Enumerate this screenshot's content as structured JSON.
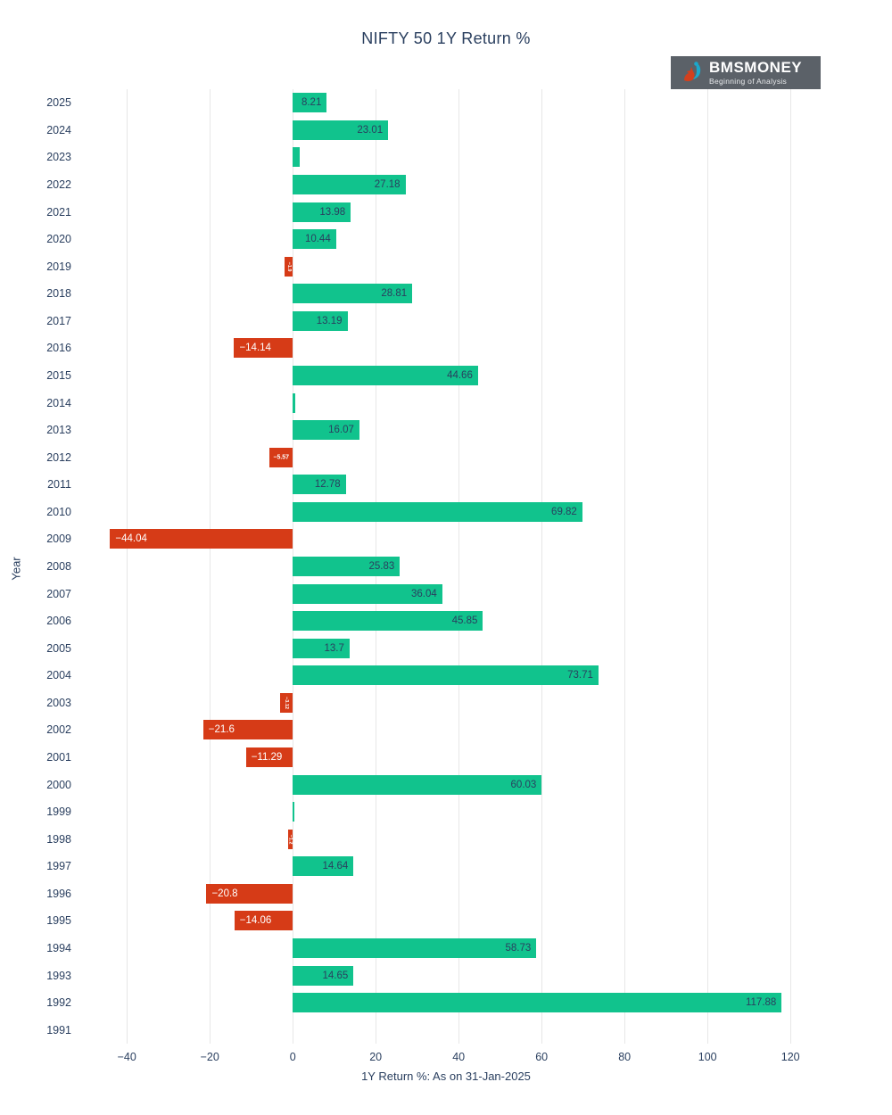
{
  "title": "NIFTY 50 1Y Return %",
  "logo": {
    "brand": "BMSMONEY",
    "tagline": "Beginning of Analysis",
    "background": "#5b6168",
    "teal": "#1ba8cc",
    "red": "#d2401e"
  },
  "chart_data": {
    "type": "bar",
    "orientation": "horizontal",
    "title": "NIFTY 50 1Y Return %",
    "xlabel": "1Y Return %: As on 31-Jan-2025",
    "ylabel": "Year",
    "xlim": [
      -52.3,
      130.5
    ],
    "xticks": [
      -40,
      -20,
      0,
      20,
      40,
      60,
      80,
      100,
      120
    ],
    "grid": true,
    "legend": false,
    "colors": {
      "positive": "#11c38d",
      "negative": "#d63b17",
      "label_on_positive": "#2a3f5f",
      "label_on_negative": "#ffffff"
    },
    "bars": [
      {
        "year": "2025",
        "value": 8.21,
        "label": "8.21",
        "label_mode": "h"
      },
      {
        "year": "2024",
        "value": 23.01,
        "label": "23.01",
        "label_mode": "h"
      },
      {
        "year": "2023",
        "value": 1.7,
        "label": "",
        "label_mode": "none"
      },
      {
        "year": "2022",
        "value": 27.18,
        "label": "27.18",
        "label_mode": "h"
      },
      {
        "year": "2021",
        "value": 13.98,
        "label": "13.98",
        "label_mode": "h"
      },
      {
        "year": "2020",
        "value": 10.44,
        "label": "10.44",
        "label_mode": "h"
      },
      {
        "year": "2019",
        "value": -1.9,
        "label": "−1.9",
        "label_mode": "v"
      },
      {
        "year": "2018",
        "value": 28.81,
        "label": "28.81",
        "label_mode": "h"
      },
      {
        "year": "2017",
        "value": 13.19,
        "label": "13.19",
        "label_mode": "h"
      },
      {
        "year": "2016",
        "value": -14.14,
        "label": "−14.14",
        "label_mode": "h"
      },
      {
        "year": "2015",
        "value": 44.66,
        "label": "44.66",
        "label_mode": "h"
      },
      {
        "year": "2014",
        "value": 0.5,
        "label": "",
        "label_mode": "none"
      },
      {
        "year": "2013",
        "value": 16.07,
        "label": "16.07",
        "label_mode": "h"
      },
      {
        "year": "2012",
        "value": -5.57,
        "label": "−5.57",
        "label_mode": "h-small"
      },
      {
        "year": "2011",
        "value": 12.78,
        "label": "12.78",
        "label_mode": "h"
      },
      {
        "year": "2010",
        "value": 69.82,
        "label": "69.82",
        "label_mode": "h"
      },
      {
        "year": "2009",
        "value": -44.04,
        "label": "−44.04",
        "label_mode": "h"
      },
      {
        "year": "2008",
        "value": 25.83,
        "label": "25.83",
        "label_mode": "h"
      },
      {
        "year": "2007",
        "value": 36.04,
        "label": "36.04",
        "label_mode": "h"
      },
      {
        "year": "2006",
        "value": 45.85,
        "label": "45.85",
        "label_mode": "h"
      },
      {
        "year": "2005",
        "value": 13.7,
        "label": "13.7",
        "label_mode": "h"
      },
      {
        "year": "2004",
        "value": 73.71,
        "label": "73.71",
        "label_mode": "h"
      },
      {
        "year": "2003",
        "value": -3.12,
        "label": "−3.12",
        "label_mode": "v"
      },
      {
        "year": "2002",
        "value": -21.6,
        "label": "−21.6",
        "label_mode": "h"
      },
      {
        "year": "2001",
        "value": -11.29,
        "label": "−11.29",
        "label_mode": "h"
      },
      {
        "year": "2000",
        "value": 60.03,
        "label": "60.03",
        "label_mode": "h"
      },
      {
        "year": "1999",
        "value": 0.3,
        "label": "",
        "label_mode": "none"
      },
      {
        "year": "1998",
        "value": -1.2,
        "label": "−1.2",
        "label_mode": "v"
      },
      {
        "year": "1997",
        "value": 14.64,
        "label": "14.64",
        "label_mode": "h"
      },
      {
        "year": "1996",
        "value": -20.8,
        "label": "−20.8",
        "label_mode": "h"
      },
      {
        "year": "1995",
        "value": -14.06,
        "label": "−14.06",
        "label_mode": "h"
      },
      {
        "year": "1994",
        "value": 58.73,
        "label": "58.73",
        "label_mode": "h"
      },
      {
        "year": "1993",
        "value": 14.65,
        "label": "14.65",
        "label_mode": "h"
      },
      {
        "year": "1992",
        "value": 117.88,
        "label": "117.88",
        "label_mode": "h"
      },
      {
        "year": "1991",
        "value": 0,
        "label": "",
        "label_mode": "none"
      }
    ]
  }
}
